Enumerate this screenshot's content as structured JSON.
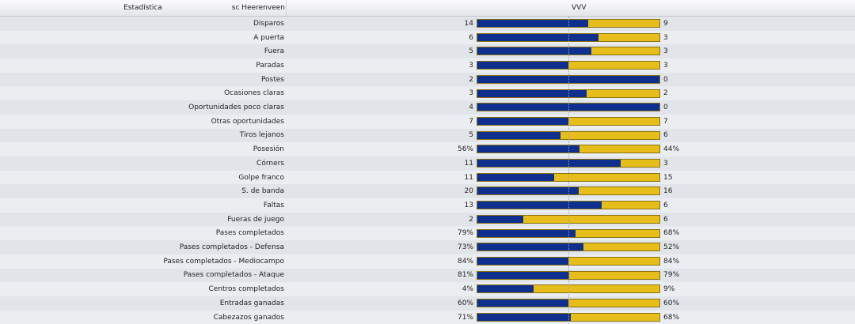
{
  "header": {
    "stat_label": "Estadística",
    "home_team": "sc Heerenveen",
    "away_team": "VVV"
  },
  "colors": {
    "home": "#0e2f8e",
    "away": "#e6bd1a"
  },
  "stats": [
    {
      "label": "Disparos",
      "home": "14",
      "away": "9",
      "home_share": 0.609
    },
    {
      "label": "A puerta",
      "home": "6",
      "away": "3",
      "home_share": 0.667
    },
    {
      "label": "Fuera",
      "home": "5",
      "away": "3",
      "home_share": 0.625
    },
    {
      "label": "Paradas",
      "home": "3",
      "away": "3",
      "home_share": 0.5
    },
    {
      "label": "Postes",
      "home": "2",
      "away": "0",
      "home_share": 1.0
    },
    {
      "label": "Ocasiones claras",
      "home": "3",
      "away": "2",
      "home_share": 0.6
    },
    {
      "label": "Oportunidades poco claras",
      "home": "4",
      "away": "0",
      "home_share": 1.0
    },
    {
      "label": "Otras oportunidades",
      "home": "7",
      "away": "7",
      "home_share": 0.5
    },
    {
      "label": "Tiros lejanos",
      "home": "5",
      "away": "6",
      "home_share": 0.455
    },
    {
      "label": "Posesión",
      "home": "56%",
      "away": "44%",
      "home_share": 0.56
    },
    {
      "label": "Córners",
      "home": "11",
      "away": "3",
      "home_share": 0.786
    },
    {
      "label": "Golpe franco",
      "home": "11",
      "away": "15",
      "home_share": 0.423
    },
    {
      "label": "S. de banda",
      "home": "20",
      "away": "16",
      "home_share": 0.556
    },
    {
      "label": "Faltas",
      "home": "13",
      "away": "6",
      "home_share": 0.684
    },
    {
      "label": "Fueras de juego",
      "home": "2",
      "away": "6",
      "home_share": 0.25
    },
    {
      "label": "Pases completados",
      "home": "79%",
      "away": "68%",
      "home_share": 0.537
    },
    {
      "label": "Pases completados - Defensa",
      "home": "73%",
      "away": "52%",
      "home_share": 0.584
    },
    {
      "label": "Pases completados - Mediocampo",
      "home": "84%",
      "away": "84%",
      "home_share": 0.5
    },
    {
      "label": "Pases completados - Ataque",
      "home": "81%",
      "away": "79%",
      "home_share": 0.506
    },
    {
      "label": "Centros completados",
      "home": "4%",
      "away": "9%",
      "home_share": 0.308
    },
    {
      "label": "Entradas ganadas",
      "home": "60%",
      "away": "60%",
      "home_share": 0.5
    },
    {
      "label": "Cabezazos ganados",
      "home": "71%",
      "away": "68%",
      "home_share": 0.511
    }
  ]
}
